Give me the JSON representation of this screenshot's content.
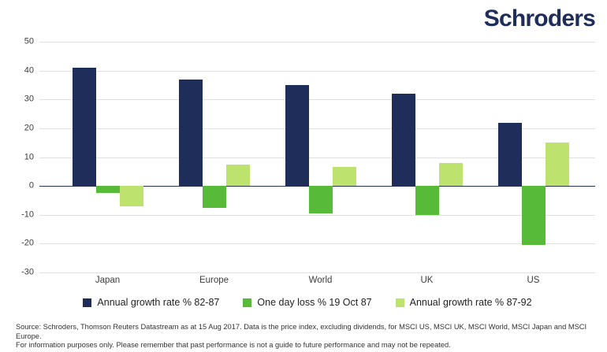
{
  "logo": {
    "text": "Schroders",
    "color": "#1E2D59"
  },
  "chart_data": {
    "type": "bar",
    "title": "",
    "xlabel": "",
    "ylabel": "",
    "categories": [
      "Japan",
      "Europe",
      "World",
      "UK",
      "US"
    ],
    "series": [
      {
        "name": "Annual growth rate % 82-87",
        "color": "#1E2D59",
        "values": [
          41,
          37,
          35,
          32,
          22
        ]
      },
      {
        "name": "One day loss % 19 Oct 87",
        "color": "#58BA39",
        "values": [
          -2.5,
          -7.5,
          -9.5,
          -10,
          -20.5
        ]
      },
      {
        "name": "Annual growth rate % 87-92",
        "color": "#BDE26E",
        "values": [
          -7,
          7.5,
          6.5,
          8,
          15
        ]
      }
    ],
    "ylim": [
      -30,
      50
    ],
    "yticks": [
      50,
      40,
      30,
      20,
      10,
      0,
      -10,
      -20,
      -30
    ],
    "grid": true,
    "gridline_color": "#E0E0E0",
    "zero_line_color": "#26335B",
    "legend_position": "bottom"
  },
  "source": {
    "line1": "Source: Schroders, Thomson Reuters Datastream as at 15 Aug 2017. Data is the price index, excluding dividends, for MSCI US, MSCI UK, MSCI World, MSCI Japan and MSCI Europe.",
    "line2": "For information purposes only. Please remember that past performance is not a guide to future performance and may not be repeated."
  }
}
